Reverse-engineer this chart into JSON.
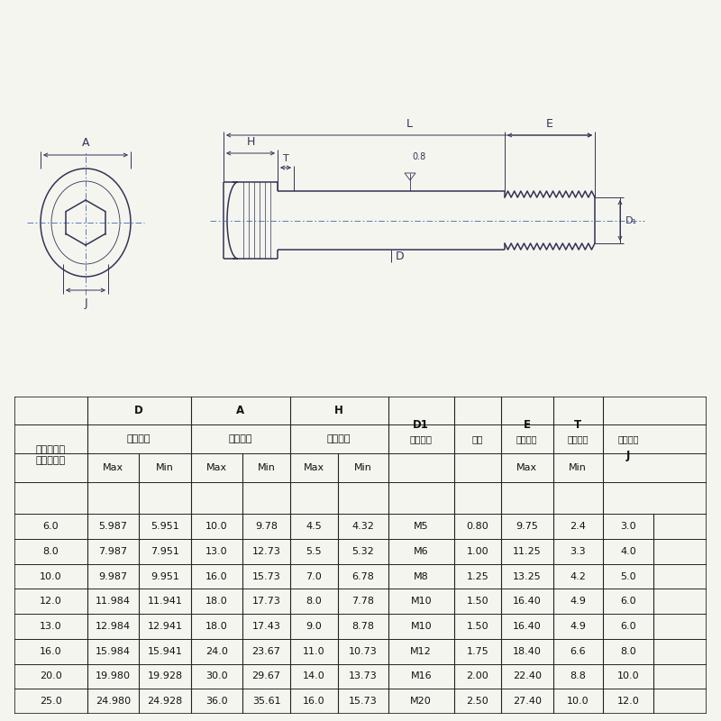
{
  "bg_color": "#f5f5f0",
  "drawing_color": "#333355",
  "dim_color": "#333355",
  "table_line_color": "#222222",
  "table_text_color": "#111111",
  "centerline_color": "#4466aa",
  "font_size_table": 8.0,
  "font_size_header": 8.5,
  "font_size_dim": 9.0,
  "table_data": [
    [
      "6.0",
      "5.987",
      "5.951",
      "10.0",
      "9.78",
      "4.5",
      "4.32",
      "M5",
      "0.80",
      "9.75",
      "2.4",
      "3.0"
    ],
    [
      "8.0",
      "7.987",
      "7.951",
      "13.0",
      "12.73",
      "5.5",
      "5.32",
      "M6",
      "1.00",
      "11.25",
      "3.3",
      "4.0"
    ],
    [
      "10.0",
      "9.987",
      "9.951",
      "16.0",
      "15.73",
      "7.0",
      "6.78",
      "M8",
      "1.25",
      "13.25",
      "4.2",
      "5.0"
    ],
    [
      "12.0",
      "11.984",
      "11.941",
      "18.0",
      "17.73",
      "8.0",
      "7.78",
      "M10",
      "1.50",
      "16.40",
      "4.9",
      "6.0"
    ],
    [
      "13.0",
      "12.984",
      "12.941",
      "18.0",
      "17.43",
      "9.0",
      "8.78",
      "M10",
      "1.50",
      "16.40",
      "4.9",
      "6.0"
    ],
    [
      "16.0",
      "15.984",
      "15.941",
      "24.0",
      "23.67",
      "11.0",
      "10.73",
      "M12",
      "1.75",
      "18.40",
      "6.6",
      "8.0"
    ],
    [
      "20.0",
      "19.980",
      "19.928",
      "30.0",
      "29.67",
      "14.0",
      "13.73",
      "M16",
      "2.00",
      "22.40",
      "8.8",
      "10.0"
    ],
    [
      "25.0",
      "24.980",
      "24.928",
      "36.0",
      "35.61",
      "16.0",
      "15.73",
      "M20",
      "2.50",
      "27.40",
      "10.0",
      "12.0"
    ]
  ]
}
